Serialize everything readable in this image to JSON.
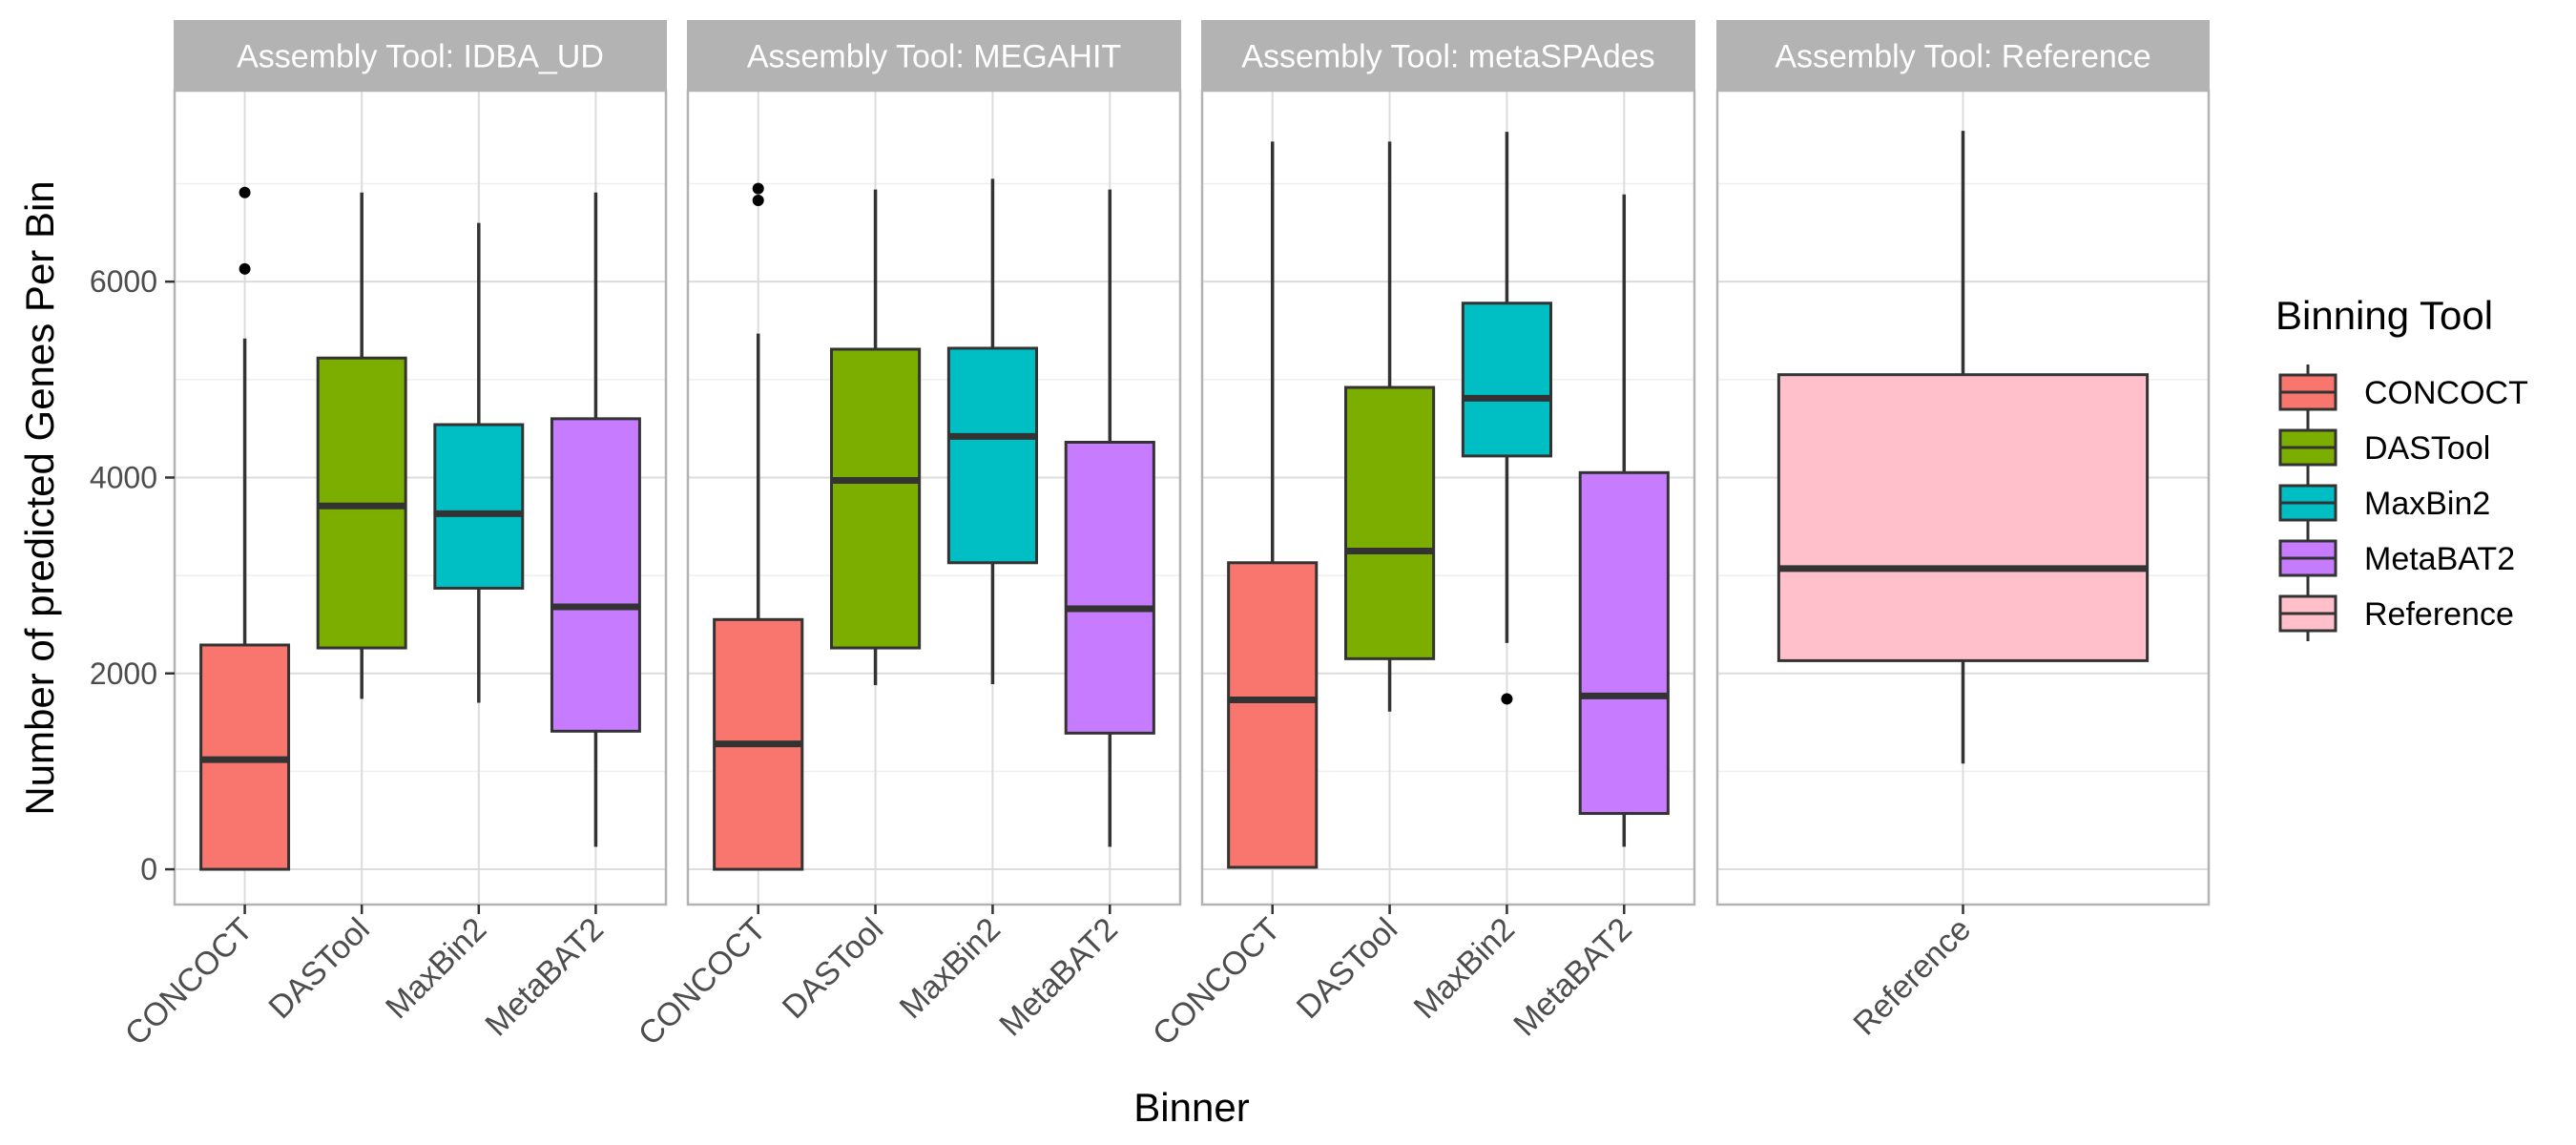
{
  "chart_data": {
    "type": "boxplot",
    "xlabel": "Binner",
    "ylabel": "Number of predicted Genes Per Bin",
    "ylim": [
      -360,
      7950
    ],
    "y_ticks": [
      0,
      2000,
      4000,
      6000
    ],
    "grid": true,
    "legend": {
      "title": "Binning Tool",
      "position": "right",
      "entries": [
        "CONCOCT",
        "DASTool",
        "MaxBin2",
        "MetaBAT2",
        "Reference"
      ]
    },
    "colors": {
      "CONCOCT": "#F8766D",
      "DASTool": "#7CAE00",
      "MaxBin2": "#00BFC4",
      "MetaBAT2": "#C77CFF",
      "Reference": "#FFC0CB"
    },
    "panels": [
      {
        "title": "Assembly Tool: IDBA_UD",
        "categories": [
          "CONCOCT",
          "DASTool",
          "MaxBin2",
          "MetaBAT2"
        ],
        "boxes": [
          {
            "binner": "CONCOCT",
            "min": 0,
            "q1": 0,
            "median": 1120,
            "q3": 2290,
            "max": 5420,
            "outliers": [
              6130,
              6910
            ]
          },
          {
            "binner": "DASTool",
            "min": 1740,
            "q1": 2260,
            "median": 3710,
            "q3": 5220,
            "max": 6910,
            "outliers": []
          },
          {
            "binner": "MaxBin2",
            "min": 1700,
            "q1": 2870,
            "median": 3630,
            "q3": 4540,
            "max": 6600,
            "outliers": []
          },
          {
            "binner": "MetaBAT2",
            "min": 230,
            "q1": 1410,
            "median": 2680,
            "q3": 4600,
            "max": 6910,
            "outliers": []
          }
        ]
      },
      {
        "title": "Assembly Tool: MEGAHIT",
        "categories": [
          "CONCOCT",
          "DASTool",
          "MaxBin2",
          "MetaBAT2"
        ],
        "boxes": [
          {
            "binner": "CONCOCT",
            "min": 0,
            "q1": 0,
            "median": 1280,
            "q3": 2550,
            "max": 5470,
            "outliers": [
              6830,
              6950
            ]
          },
          {
            "binner": "DASTool",
            "min": 1880,
            "q1": 2260,
            "median": 3970,
            "q3": 5310,
            "max": 6940,
            "outliers": []
          },
          {
            "binner": "MaxBin2",
            "min": 1890,
            "q1": 3130,
            "median": 4420,
            "q3": 5320,
            "max": 7050,
            "outliers": []
          },
          {
            "binner": "MetaBAT2",
            "min": 230,
            "q1": 1390,
            "median": 2660,
            "q3": 4360,
            "max": 6940,
            "outliers": []
          }
        ]
      },
      {
        "title": "Assembly Tool: metaSPAdes",
        "categories": [
          "CONCOCT",
          "DASTool",
          "MaxBin2",
          "MetaBAT2"
        ],
        "boxes": [
          {
            "binner": "CONCOCT",
            "min": 20,
            "q1": 20,
            "median": 1730,
            "q3": 3130,
            "max": 7430,
            "outliers": []
          },
          {
            "binner": "DASTool",
            "min": 1610,
            "q1": 2150,
            "median": 3250,
            "q3": 4920,
            "max": 7430,
            "outliers": []
          },
          {
            "binner": "MaxBin2",
            "min": 2310,
            "q1": 4220,
            "median": 4810,
            "q3": 5780,
            "max": 7530,
            "outliers": [
              1740
            ]
          },
          {
            "binner": "MetaBAT2",
            "min": 230,
            "q1": 570,
            "median": 1770,
            "q3": 4050,
            "max": 6890,
            "outliers": []
          }
        ]
      },
      {
        "title": "Assembly Tool: Reference",
        "categories": [
          "Reference"
        ],
        "boxes": [
          {
            "binner": "Reference",
            "min": 1080,
            "q1": 2130,
            "median": 3070,
            "q3": 5050,
            "max": 7540,
            "outliers": []
          }
        ]
      }
    ]
  }
}
